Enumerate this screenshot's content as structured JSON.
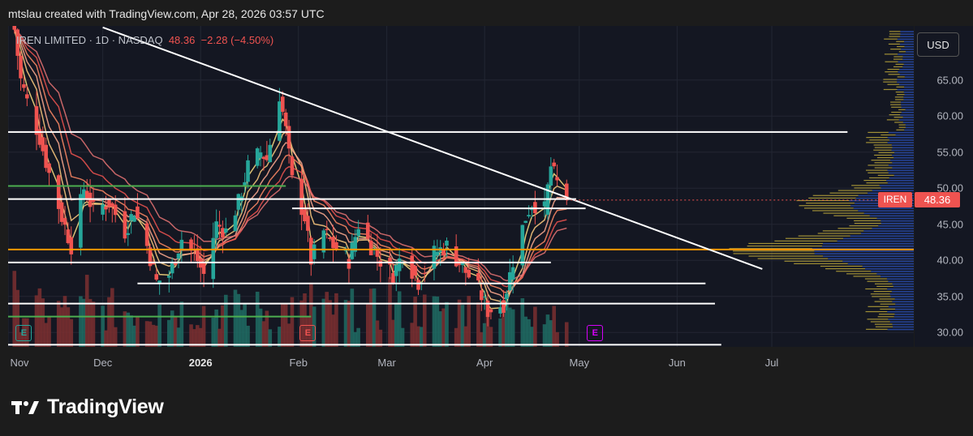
{
  "header": {
    "text": "mtslau created with TradingView.com, Apr 28, 2026 03:57 UTC"
  },
  "legend": {
    "title": "IREN LIMITED · 1D · NASDAQ",
    "last": "48.36",
    "change": "−2.28 (−4.50%)"
  },
  "currency_button": "USD",
  "symbol_tag": "IREN",
  "price_tag": "48.36",
  "earnings_badges": [
    {
      "label": "E",
      "date": "2025-11-06",
      "color": "#26a69a"
    },
    {
      "label": "E",
      "date": "2026-02-04",
      "color": "#ef5350"
    },
    {
      "label": "E",
      "date": "2026-05-06",
      "color": "#d500f9"
    }
  ],
  "logo": {
    "text": "TradingView",
    "icon": "tradingview-logo-icon"
  },
  "colors": {
    "up": "#26a69a",
    "down": "#ef5350",
    "background": "#141722",
    "accent": "#ef5350"
  },
  "chart_data": {
    "type": "candlestick",
    "symbol": "IREN",
    "interval": "1D",
    "ylim": [
      28,
      72.5
    ],
    "y_ticks": [
      "30.00",
      "35.00",
      "40.00",
      "45.00",
      "50.00",
      "55.00",
      "60.00",
      "65.00"
    ],
    "x_ticks": [
      {
        "label": "Nov",
        "date": "2025-11-01"
      },
      {
        "label": "Dec",
        "date": "2025-12-01"
      },
      {
        "label": "2026",
        "date": "2026-01-01",
        "bold": true
      },
      {
        "label": "Feb",
        "date": "2026-02-01"
      },
      {
        "label": "Mar",
        "date": "2026-03-01"
      },
      {
        "label": "Apr",
        "date": "2026-04-01"
      },
      {
        "label": "May",
        "date": "2026-05-01"
      },
      {
        "label": "Jun",
        "date": "2026-06-01"
      },
      {
        "label": "Jul",
        "date": "2026-07-01"
      }
    ],
    "xlim": [
      "2025-11-01",
      "2026-08-15"
    ],
    "price_path": [
      [
        "2025-11-03",
        72
      ],
      [
        "2025-11-05",
        65
      ],
      [
        "2025-11-07",
        62
      ],
      [
        "2025-11-11",
        57
      ],
      [
        "2025-11-14",
        52
      ],
      [
        "2025-11-18",
        46
      ],
      [
        "2025-11-21",
        42
      ],
      [
        "2025-11-25",
        50
      ],
      [
        "2025-11-28",
        47
      ],
      [
        "2025-12-03",
        48
      ],
      [
        "2025-12-08",
        44
      ],
      [
        "2025-12-11",
        47
      ],
      [
        "2025-12-15",
        42
      ],
      [
        "2025-12-18",
        37
      ],
      [
        "2025-12-22",
        38
      ],
      [
        "2025-12-26",
        43
      ],
      [
        "2025-12-30",
        41
      ],
      [
        "2026-01-02",
        38
      ],
      [
        "2026-01-06",
        45
      ],
      [
        "2026-01-09",
        44
      ],
      [
        "2026-01-13",
        48
      ],
      [
        "2026-01-16",
        53
      ],
      [
        "2026-01-20",
        55
      ],
      [
        "2026-01-22",
        54
      ],
      [
        "2026-01-26",
        63
      ],
      [
        "2026-01-28",
        58
      ],
      [
        "2026-01-30",
        51
      ],
      [
        "2026-02-03",
        46
      ],
      [
        "2026-02-05",
        40
      ],
      [
        "2026-02-09",
        44
      ],
      [
        "2026-02-12",
        42
      ],
      [
        "2026-02-17",
        40
      ],
      [
        "2026-02-20",
        45
      ],
      [
        "2026-02-24",
        42
      ],
      [
        "2026-02-27",
        40
      ],
      [
        "2026-03-03",
        38
      ],
      [
        "2026-03-06",
        41
      ],
      [
        "2026-03-11",
        37
      ],
      [
        "2026-03-16",
        41
      ],
      [
        "2026-03-20",
        42
      ],
      [
        "2026-03-25",
        39
      ],
      [
        "2026-03-30",
        36
      ],
      [
        "2026-04-02",
        33
      ],
      [
        "2026-04-07",
        34
      ],
      [
        "2026-04-10",
        40
      ],
      [
        "2026-04-14",
        46
      ],
      [
        "2026-04-16",
        48
      ],
      [
        "2026-04-20",
        47
      ],
      [
        "2026-04-22",
        53
      ],
      [
        "2026-04-24",
        50.64
      ],
      [
        "2026-04-27",
        48.36
      ]
    ],
    "horizontal_levels": [
      {
        "price": 57.8,
        "from": "2025-11-01",
        "to": "2026-07-25",
        "color": "#ffffff"
      },
      {
        "price": 48.5,
        "from": "2025-11-01",
        "to": "2026-04-30",
        "color": "#ffffff"
      },
      {
        "price": 47.2,
        "from": "2026-01-30",
        "to": "2026-05-03",
        "color": "#ffffff"
      },
      {
        "price": 41.5,
        "from": "2025-11-01",
        "to": "2026-08-15",
        "color": "#ff9800"
      },
      {
        "price": 39.7,
        "from": "2025-11-01",
        "to": "2026-04-22",
        "color": "#ffffff"
      },
      {
        "price": 36.8,
        "from": "2025-12-12",
        "to": "2026-06-10",
        "color": "#ffffff"
      },
      {
        "price": 34.0,
        "from": "2025-11-01",
        "to": "2026-06-13",
        "color": "#ffffff"
      },
      {
        "price": 28.3,
        "from": "2025-11-01",
        "to": "2026-06-15",
        "color": "#ffffff"
      },
      {
        "price": 50.3,
        "from": "2025-11-01",
        "to": "2026-01-28",
        "color": "#4caf50"
      },
      {
        "price": 32.2,
        "from": "2025-11-01",
        "to": "2026-02-05",
        "color": "#4caf50"
      }
    ],
    "trendline": {
      "from": [
        "2025-12-01",
        72.3
      ],
      "to": [
        "2026-06-28",
        38.8
      ],
      "color": "#ffffff"
    },
    "last_price": 48.36
  }
}
